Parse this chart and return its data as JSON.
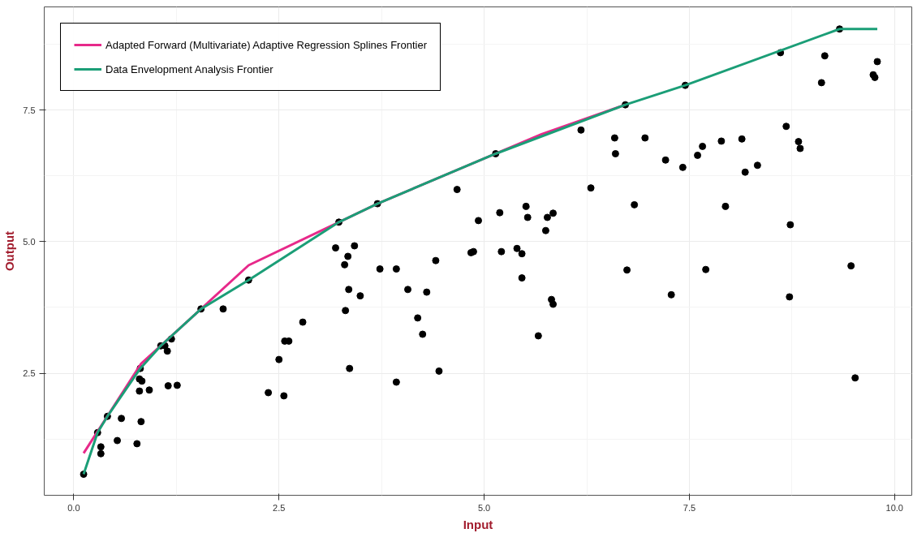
{
  "chart_data": {
    "type": "scatter",
    "xlabel": "Input",
    "ylabel": "Output",
    "xlim": [
      -0.36,
      10.21
    ],
    "ylim": [
      0.18,
      9.46
    ],
    "xticks": [
      {
        "value": 0,
        "label": "0.0"
      },
      2.5,
      {
        "value": 5,
        "label": "5.0"
      },
      7.5,
      {
        "value": 10,
        "label": "10.0"
      }
    ],
    "yticks": [
      2.5,
      {
        "value": 5,
        "label": "5.0"
      },
      7.5
    ],
    "grid": true,
    "legend": "top left",
    "series": [
      {
        "marker": "circle",
        "color": "#000000",
        "x": [
          0.12,
          0.29,
          0.33,
          0.33,
          0.41,
          0.53,
          0.58,
          0.77,
          0.82,
          0.8,
          0.92,
          0.8,
          0.83,
          0.81,
          1.15,
          1.26,
          1.06,
          1.11,
          1.19,
          1.14,
          1.55,
          1.82,
          2.13,
          2.37,
          2.56,
          2.5,
          2.57,
          2.62,
          2.79,
          3.36,
          3.31,
          3.35,
          3.3,
          3.34,
          3.19,
          3.23,
          3.7,
          3.42,
          3.49,
          3.73,
          3.93,
          3.93,
          4.07,
          4.3,
          4.19,
          4.25,
          4.45,
          4.41,
          4.67,
          4.93,
          4.84,
          4.87,
          5.14,
          5.19,
          5.21,
          5.4,
          5.46,
          5.46,
          5.51,
          5.53,
          5.66,
          5.75,
          5.77,
          5.84,
          5.82,
          5.84,
          6.18,
          6.72,
          7.45,
          6.59,
          6.96,
          6.6,
          6.3,
          6.83,
          7.21,
          7.42,
          7.6,
          7.66,
          7.89,
          8.14,
          8.18,
          8.33,
          7.94,
          8.68,
          8.83,
          8.85,
          8.73,
          6.74,
          7.7,
          7.28,
          8.72,
          9.47,
          9.52,
          8.61,
          9.15,
          9.33,
          9.11,
          9.74,
          9.76,
          9.79
        ],
        "values": [
          0.58,
          1.37,
          1.1,
          0.97,
          1.68,
          1.22,
          1.64,
          1.16,
          1.58,
          2.16,
          2.18,
          2.39,
          2.35,
          2.59,
          2.26,
          2.27,
          3.02,
          3.02,
          3.15,
          2.92,
          3.72,
          3.72,
          4.27,
          2.13,
          2.07,
          2.76,
          3.11,
          3.11,
          3.47,
          2.59,
          3.69,
          4.09,
          4.56,
          4.72,
          4.88,
          5.37,
          5.72,
          4.92,
          3.97,
          4.48,
          4.48,
          2.33,
          4.09,
          4.04,
          3.55,
          3.24,
          2.54,
          4.64,
          5.99,
          5.4,
          4.79,
          4.81,
          6.67,
          5.55,
          4.81,
          4.87,
          4.77,
          4.31,
          5.67,
          5.46,
          3.21,
          5.21,
          5.46,
          5.54,
          3.9,
          3.81,
          7.12,
          7.6,
          7.97,
          6.97,
          6.97,
          6.67,
          6.02,
          5.7,
          6.55,
          6.41,
          6.64,
          6.81,
          6.91,
          6.95,
          6.32,
          6.45,
          5.67,
          7.19,
          6.9,
          6.77,
          5.32,
          4.46,
          4.47,
          3.99,
          3.95,
          4.54,
          2.41,
          8.59,
          8.53,
          9.04,
          8.02,
          8.17,
          8.12,
          8.42
        ]
      },
      {
        "type": "line",
        "name": "Adapted Forward (Multivariate) Adaptive Regression Splines Frontier",
        "color": "#e7298a",
        "x": [
          0.12,
          0.82,
          1.55,
          2.13,
          3.23,
          3.7,
          5.14,
          5.7,
          6.72
        ],
        "values": [
          0.98,
          2.68,
          3.72,
          4.55,
          5.37,
          5.72,
          6.67,
          7.04,
          7.6
        ]
      },
      {
        "type": "line",
        "name": "Data Envelopment Analysis Frontier",
        "color": "#1b9e77",
        "x": [
          0.12,
          0.29,
          0.41,
          0.81,
          1.06,
          1.55,
          2.13,
          3.23,
          3.7,
          5.14,
          6.72,
          7.45,
          9.33,
          9.79
        ],
        "values": [
          0.58,
          1.37,
          1.68,
          2.59,
          3.02,
          3.72,
          4.27,
          5.37,
          5.72,
          6.67,
          7.6,
          7.97,
          9.04,
          9.04
        ]
      }
    ]
  }
}
